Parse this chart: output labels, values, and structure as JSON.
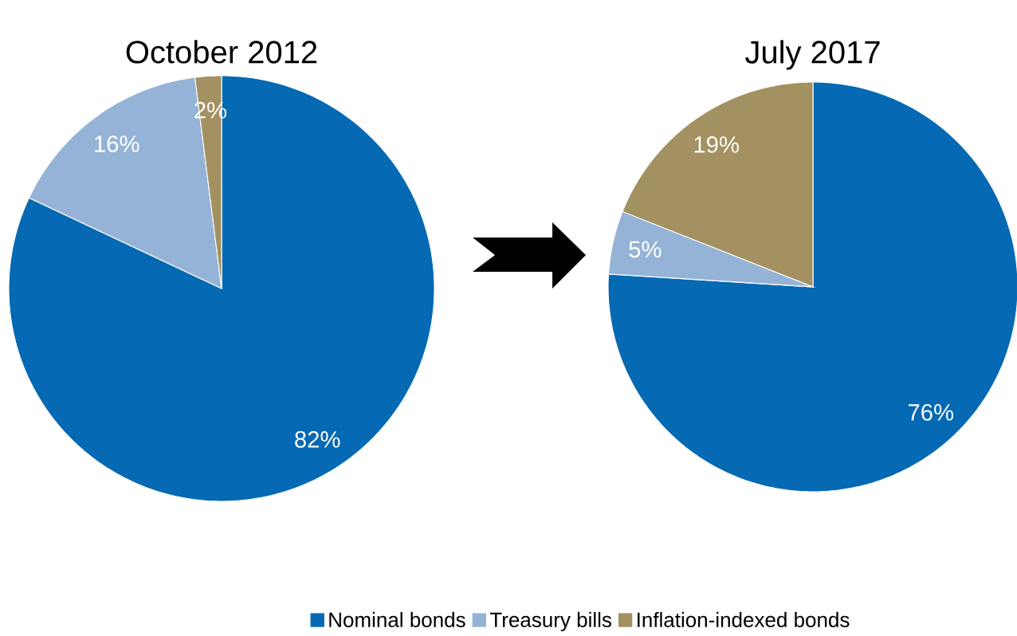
{
  "chart_data": [
    {
      "type": "pie",
      "title": "October 2012",
      "categories": [
        null,
        null,
        null
      ],
      "values": [
        82,
        16,
        2
      ],
      "colors": [
        "#0569b3",
        "#95b3d7",
        "#a39161"
      ],
      "value_labels": [
        "82%",
        "16%",
        "2%"
      ]
    },
    {
      "type": "pie",
      "title": "July 2017",
      "categories": [
        "Nominal bonds",
        "Treasury bills",
        "Inflation-indexed bonds"
      ],
      "values": [
        76,
        5,
        19
      ],
      "colors": [
        "#0569b3",
        "#95b3d7",
        "#a39161"
      ],
      "value_labels": [
        "76%",
        "5%",
        "19%"
      ],
      "legend": "bottom"
    }
  ]
}
